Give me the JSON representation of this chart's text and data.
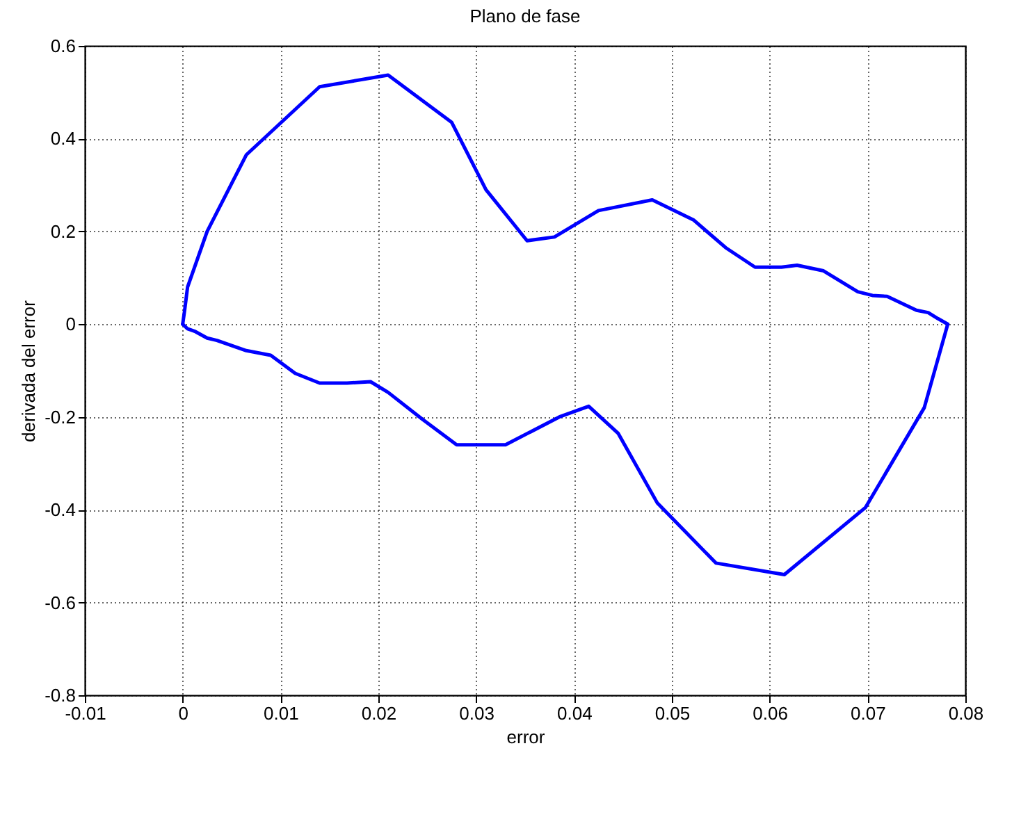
{
  "chart_data": {
    "type": "line",
    "title": "Plano de fase",
    "xlabel": "error",
    "ylabel": "derivada del error",
    "xlim": [
      -0.01,
      0.08
    ],
    "xticks": [
      -0.01,
      0,
      0.01,
      0.02,
      0.03,
      0.04,
      0.05,
      0.06,
      0.07,
      0.08
    ],
    "ylim": [
      -0.8,
      0.6
    ],
    "yticks": [
      -0.8,
      -0.6,
      -0.4,
      -0.2,
      0,
      0.2,
      0.4,
      0.6
    ],
    "grid": true,
    "line_style": "solid",
    "marker": "none",
    "series": [
      {
        "color": "#0000ff",
        "x": [
          0,
          0.0002,
          0.0005,
          0.0025,
          0.0065,
          0.014,
          0.021,
          0.0275,
          0.031,
          0.0352,
          0.038,
          0.0425,
          0.048,
          0.0522,
          0.0555,
          0.0585,
          0.0612,
          0.0628,
          0.0655,
          0.069,
          0.0705,
          0.072,
          0.0735,
          0.075,
          0.0762,
          0.0772,
          0.0782
        ],
        "values": [
          0,
          0.03,
          0.08,
          0.2,
          0.365,
          0.512,
          0.537,
          0.435,
          0.29,
          0.18,
          0.188,
          0.245,
          0.268,
          0.225,
          0.165,
          0.123,
          0.123,
          0.127,
          0.115,
          0.07,
          0.062,
          0.06,
          0.045,
          0.03,
          0.025,
          0.012,
          0
        ]
      },
      {
        "color": "#0000ff",
        "x": [
          0,
          0.0005,
          0.0013,
          0.0025,
          0.0035,
          0.0065,
          0.009,
          0.0115,
          0.014,
          0.0168,
          0.0192,
          0.021,
          0.0245,
          0.028,
          0.033,
          0.0385,
          0.0415,
          0.0445,
          0.0485,
          0.0545,
          0.0615,
          0.0698,
          0.0758,
          0.0782
        ],
        "values": [
          0,
          -0.01,
          -0.016,
          -0.03,
          -0.035,
          -0.057,
          -0.067,
          -0.106,
          -0.127,
          -0.127,
          -0.124,
          -0.147,
          -0.205,
          -0.26,
          -0.26,
          -0.2,
          -0.177,
          -0.235,
          -0.385,
          -0.515,
          -0.54,
          -0.395,
          -0.18,
          0
        ]
      }
    ]
  }
}
